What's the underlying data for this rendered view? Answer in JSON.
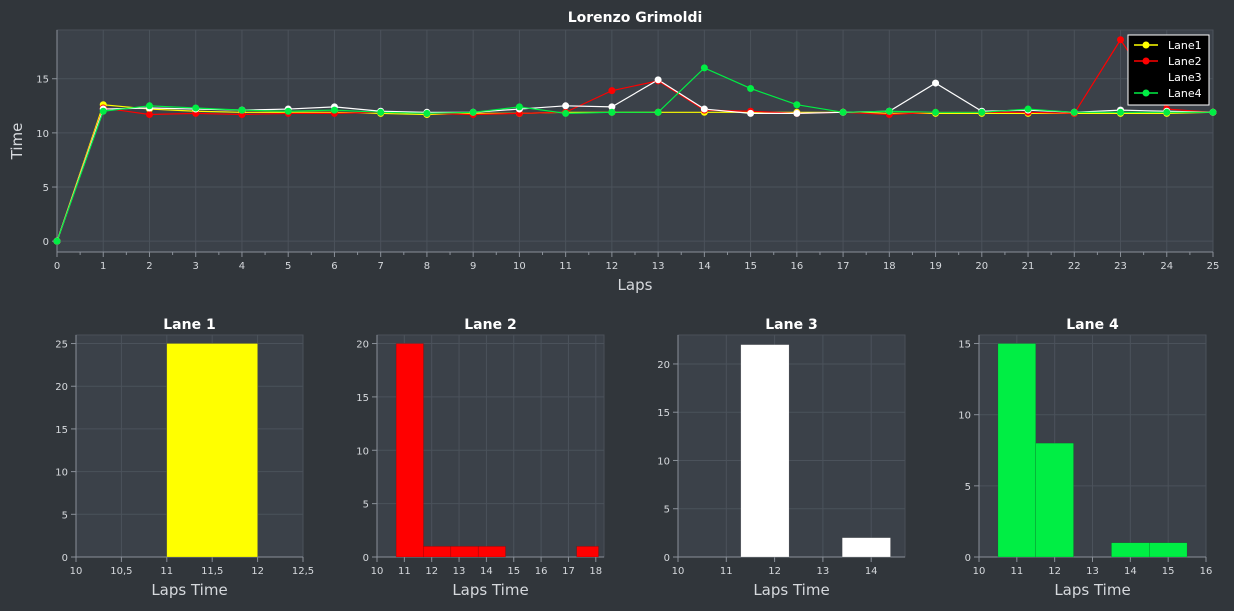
{
  "colors": {
    "background": "#31363b",
    "plot_bg": "#3b4149",
    "grid": "#4b525b",
    "axis": "#8a9099",
    "text": "#d6d9dd",
    "title": "#ffffff",
    "lane1": "#ffff00",
    "lane2": "#ff0000",
    "lane3": "#ffffff",
    "lane4": "#00ee44"
  },
  "chart_data": [
    {
      "type": "line",
      "title": "Lorenzo Grimoldi",
      "xlabel": "Laps",
      "ylabel": "Time",
      "xlim": [
        0,
        25
      ],
      "ylim": [
        -1,
        19.5
      ],
      "xticks": [
        0,
        1,
        2,
        3,
        4,
        5,
        6,
        7,
        8,
        9,
        10,
        11,
        12,
        13,
        14,
        15,
        16,
        17,
        18,
        19,
        20,
        21,
        22,
        23,
        24,
        25
      ],
      "yticks": [
        0,
        5,
        10,
        15
      ],
      "grid": true,
      "legend": "top-right",
      "x": [
        0,
        1,
        2,
        3,
        4,
        5,
        6,
        7,
        8,
        9,
        10,
        11,
        12,
        13,
        14,
        15,
        16,
        17,
        18,
        19,
        20,
        21,
        22,
        23,
        24,
        25
      ],
      "series": [
        {
          "name": "Lane1",
          "color": "#ffff00",
          "values": [
            0,
            12.6,
            12.2,
            12.0,
            11.9,
            11.9,
            11.9,
            11.8,
            11.7,
            11.8,
            11.8,
            11.9,
            11.9,
            11.9,
            11.9,
            11.9,
            11.9,
            11.9,
            11.8,
            11.8,
            11.8,
            11.8,
            11.8,
            11.8,
            11.8,
            11.9
          ]
        },
        {
          "name": "Lane2",
          "color": "#ff0000",
          "values": [
            0,
            12.3,
            11.7,
            11.8,
            11.7,
            11.8,
            11.8,
            11.9,
            11.8,
            11.7,
            11.8,
            11.9,
            13.9,
            14.8,
            12.1,
            12.0,
            11.8,
            11.9,
            11.7,
            11.9,
            11.9,
            11.9,
            11.8,
            18.6,
            12.2,
            11.9
          ]
        },
        {
          "name": "Lane3",
          "color": "#ffffff",
          "values": [
            0,
            12.2,
            12.3,
            12.2,
            12.1,
            12.2,
            12.4,
            12.0,
            11.9,
            11.9,
            12.2,
            12.5,
            12.4,
            14.9,
            12.2,
            11.8,
            11.8,
            11.9,
            12.0,
            14.6,
            12.0,
            12.1,
            11.9,
            12.1,
            12.0,
            11.9
          ]
        },
        {
          "name": "Lane4",
          "color": "#00ee44",
          "values": [
            0,
            12.0,
            12.5,
            12.3,
            12.1,
            12.0,
            12.1,
            11.9,
            11.8,
            11.9,
            12.4,
            11.8,
            11.9,
            11.9,
            16.0,
            14.1,
            12.6,
            11.9,
            12.0,
            11.9,
            11.9,
            12.2,
            11.9,
            11.9,
            11.9,
            11.9
          ]
        }
      ]
    },
    {
      "type": "bar",
      "title": "Lane 1",
      "xlabel": "Laps Time",
      "ylabel": "",
      "color": "#ffff00",
      "xlim": [
        10,
        12.5
      ],
      "ylim": [
        0,
        26
      ],
      "xticks": [
        10,
        10.5,
        11,
        11.5,
        12,
        12.5
      ],
      "xtick_labels": [
        "10",
        "10,5",
        "11",
        "11,5",
        "12",
        "12,5"
      ],
      "yticks": [
        0,
        5,
        10,
        15,
        20,
        25
      ],
      "bins": [
        {
          "start": 11,
          "end": 12,
          "count": 25
        }
      ]
    },
    {
      "type": "bar",
      "title": "Lane 2",
      "xlabel": "Laps Time",
      "ylabel": "",
      "color": "#ff0000",
      "xlim": [
        10,
        18.3
      ],
      "ylim": [
        0,
        20.8
      ],
      "xticks": [
        10,
        11,
        12,
        13,
        14,
        15,
        16,
        17,
        18
      ],
      "xtick_labels": [
        "10",
        "11",
        "12",
        "13",
        "14",
        "15",
        "16",
        "17",
        "18"
      ],
      "yticks": [
        0,
        5,
        10,
        15,
        20
      ],
      "bins": [
        {
          "start": 10.7,
          "end": 11.7,
          "count": 20
        },
        {
          "start": 11.7,
          "end": 12.7,
          "count": 1
        },
        {
          "start": 12.7,
          "end": 13.7,
          "count": 1
        },
        {
          "start": 13.7,
          "end": 14.7,
          "count": 1
        },
        {
          "start": 17.3,
          "end": 18.1,
          "count": 1
        }
      ]
    },
    {
      "type": "bar",
      "title": "Lane 3",
      "xlabel": "Laps Time",
      "ylabel": "",
      "color": "#ffffff",
      "xlim": [
        10,
        14.7
      ],
      "ylim": [
        0,
        23
      ],
      "xticks": [
        10,
        11,
        12,
        13,
        14
      ],
      "xtick_labels": [
        "10",
        "11",
        "12",
        "13",
        "14"
      ],
      "yticks": [
        0,
        5,
        10,
        15,
        20
      ],
      "bins": [
        {
          "start": 11.3,
          "end": 12.3,
          "count": 22
        },
        {
          "start": 13.4,
          "end": 14.4,
          "count": 2
        }
      ]
    },
    {
      "type": "bar",
      "title": "Lane 4",
      "xlabel": "Laps Time",
      "ylabel": "",
      "color": "#00ee44",
      "xlim": [
        10,
        16
      ],
      "ylim": [
        0,
        15.6
      ],
      "xticks": [
        10,
        11,
        12,
        13,
        14,
        15,
        16
      ],
      "xtick_labels": [
        "10",
        "11",
        "12",
        "13",
        "14",
        "15",
        "16"
      ],
      "yticks": [
        0,
        5,
        10,
        15
      ],
      "bins": [
        {
          "start": 10.5,
          "end": 11.5,
          "count": 15
        },
        {
          "start": 11.5,
          "end": 12.5,
          "count": 8
        },
        {
          "start": 13.5,
          "end": 14.5,
          "count": 1
        },
        {
          "start": 14.5,
          "end": 15.5,
          "count": 1
        }
      ]
    }
  ]
}
